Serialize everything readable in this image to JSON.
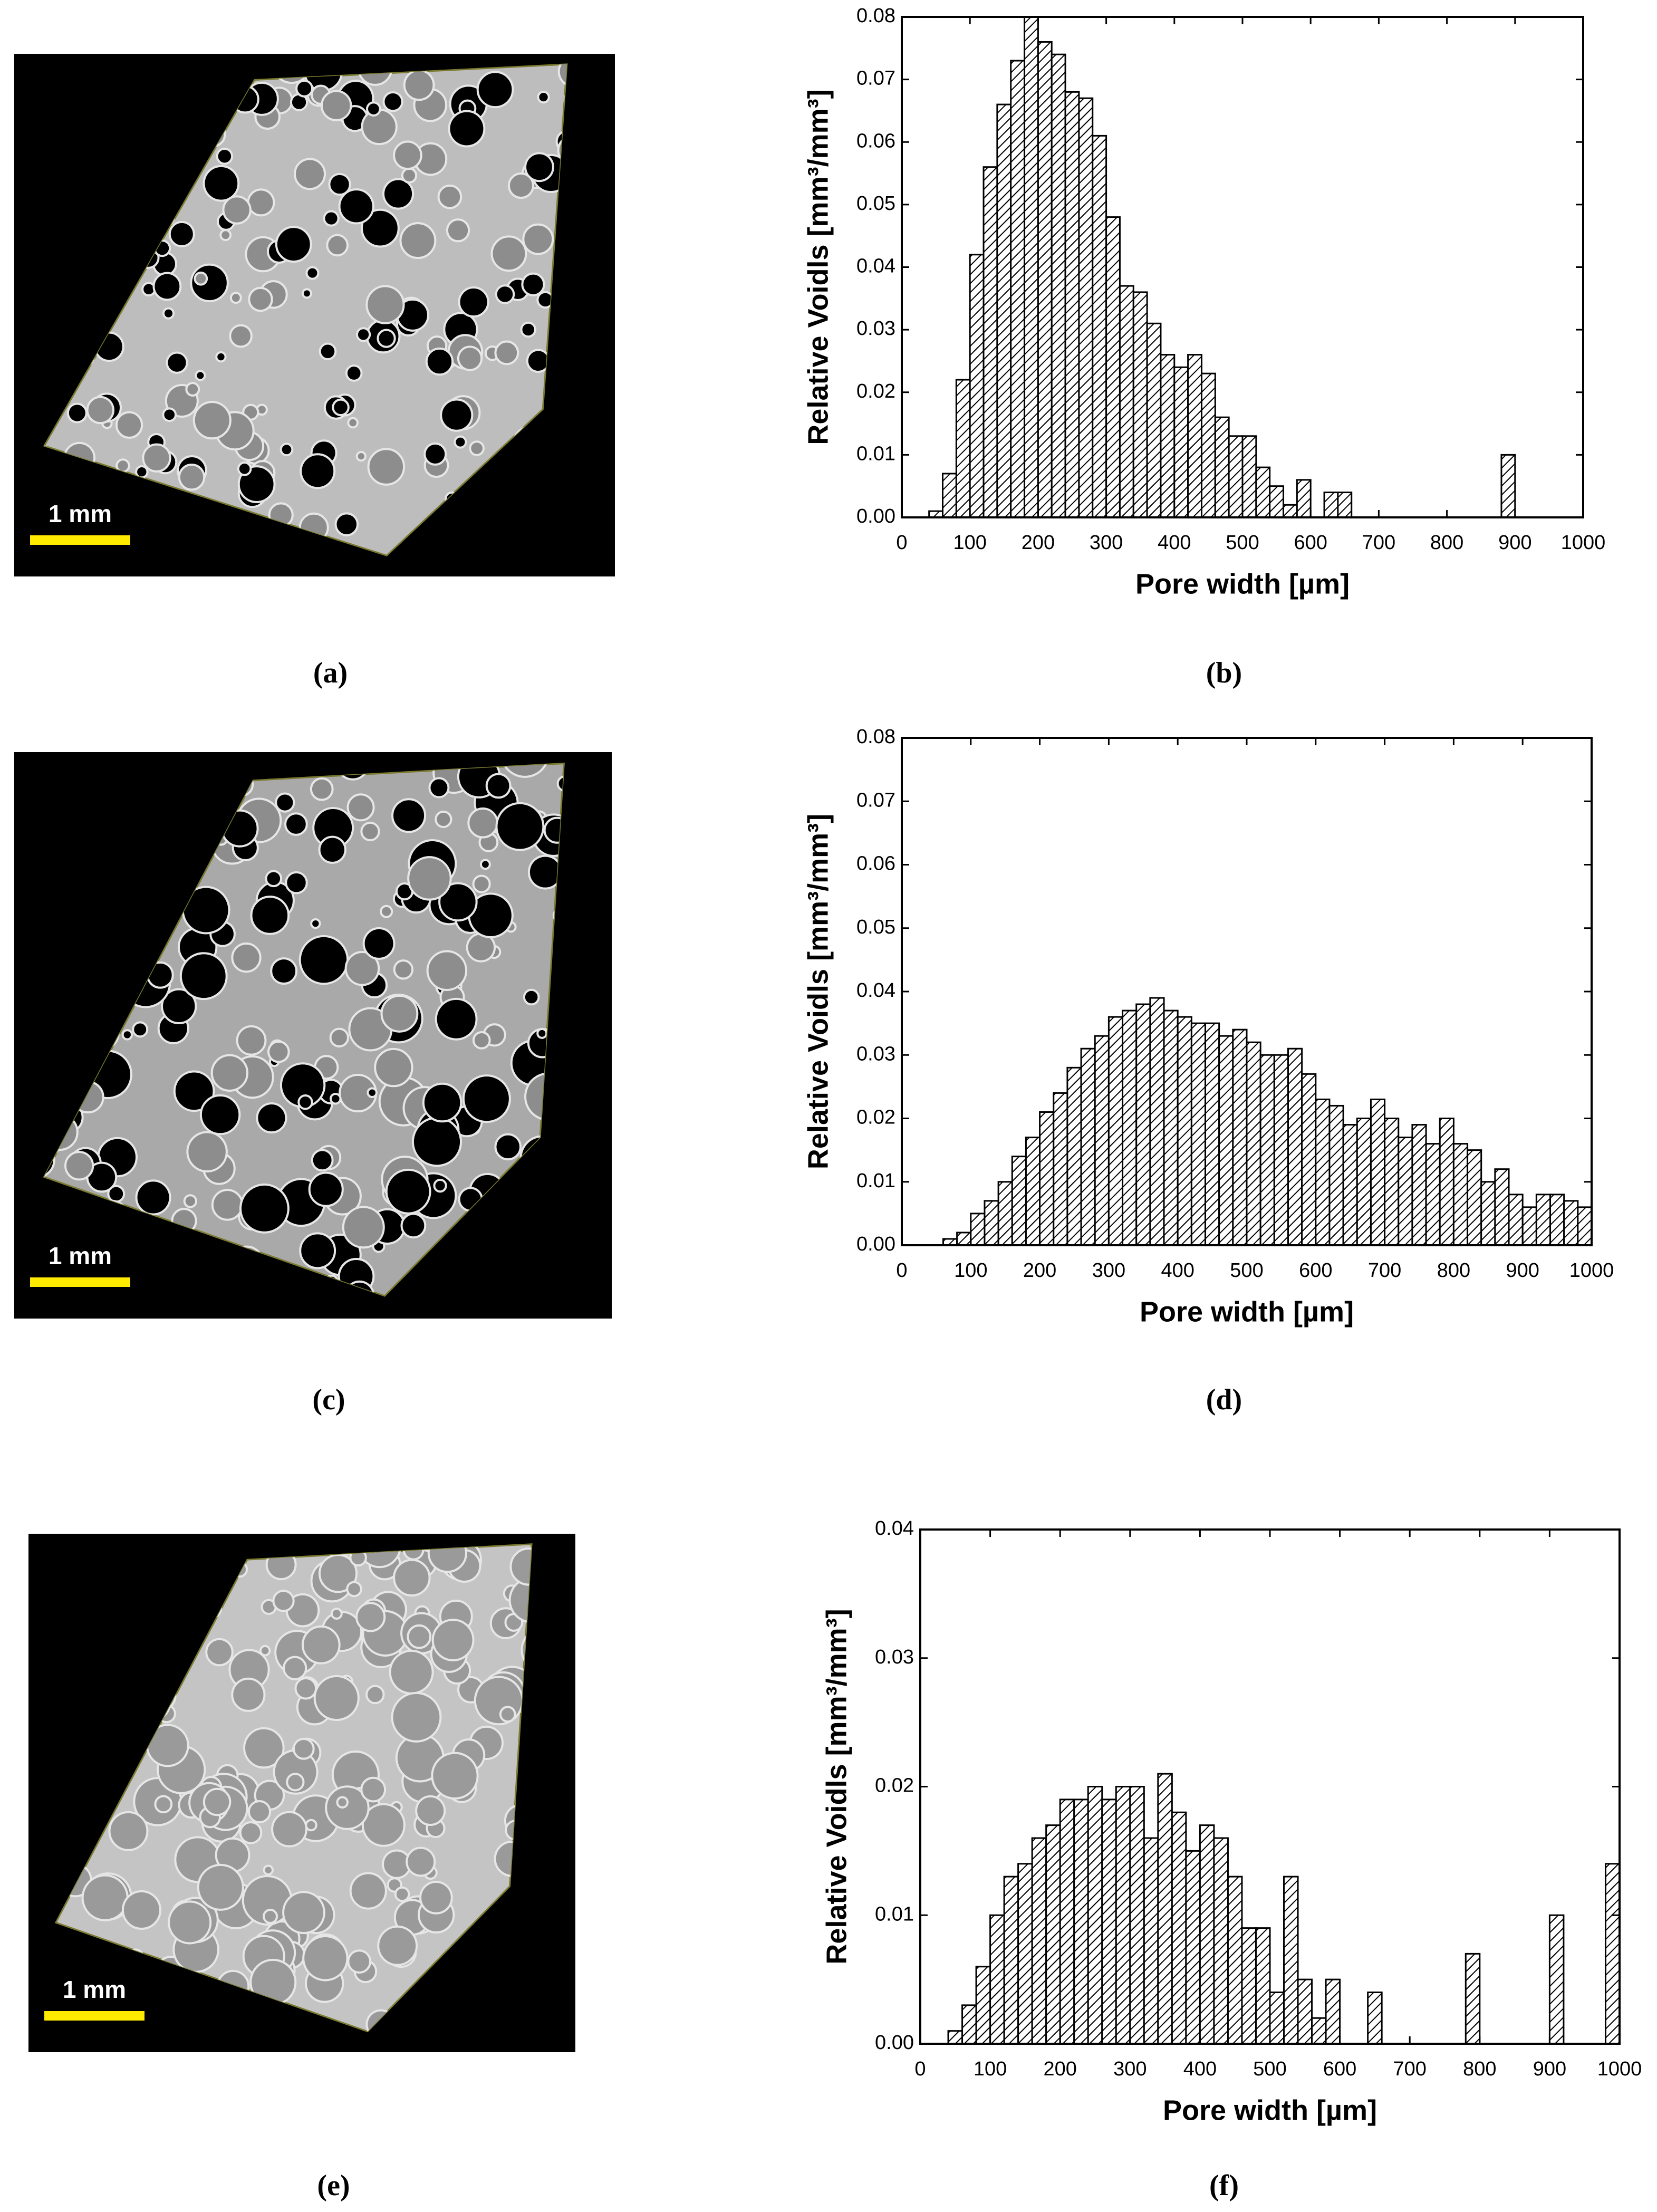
{
  "images": [
    {
      "label": "(a)",
      "scale_bar": "1 mm"
    },
    {
      "label": "(c)",
      "scale_bar": "1 mm"
    },
    {
      "label": "(e)",
      "scale_bar": "1 mm"
    }
  ],
  "chart_data": [
    {
      "type": "histogram",
      "label": "(b)",
      "x_label": "Pore width [µm]",
      "y_label": "Relative Voidls [mm³/mm³]",
      "bins": [
        0,
        20,
        40,
        60,
        80,
        100,
        120,
        140,
        160,
        180,
        200,
        220,
        240,
        260,
        280,
        300,
        320,
        340,
        360,
        380,
        400,
        420,
        440,
        460,
        480,
        500,
        520,
        540,
        560,
        580,
        600,
        620,
        640,
        660,
        680,
        700,
        720,
        740,
        760,
        780,
        800,
        820,
        840,
        860,
        880,
        900,
        920,
        940,
        960,
        980,
        1000
      ],
      "counts": [
        0,
        0,
        0.001,
        0.007,
        0.022,
        0.042,
        0.056,
        0.066,
        0.073,
        0.08,
        0.076,
        0.074,
        0.068,
        0.067,
        0.061,
        0.048,
        0.037,
        0.036,
        0.031,
        0.026,
        0.024,
        0.026,
        0.023,
        0.016,
        0.013,
        0.013,
        0.008,
        0.005,
        0.002,
        0.006,
        0,
        0.004,
        0.004,
        0,
        0,
        0,
        0,
        0,
        0,
        0,
        0,
        0,
        0,
        0,
        0.01,
        0,
        0,
        0,
        0,
        0
      ],
      "xlim": [
        0,
        1000
      ],
      "xticks": [
        0,
        100,
        200,
        300,
        400,
        500,
        600,
        700,
        800,
        900,
        1000
      ],
      "ylim": [
        0,
        0.08
      ],
      "yticks": [
        {
          "value": 0,
          "label": "0.00"
        },
        {
          "value": 0.01,
          "label": "0.01"
        },
        {
          "value": 0.02,
          "label": "0.02"
        },
        {
          "value": 0.03,
          "label": "0.03"
        },
        {
          "value": 0.04,
          "label": "0.04"
        },
        {
          "value": 0.05,
          "label": "0.05"
        },
        {
          "value": 0.06,
          "label": "0.06"
        },
        {
          "value": 0.07,
          "label": "0.07"
        },
        {
          "value": 0.08,
          "label": "0.08"
        }
      ],
      "color": "#000000"
    },
    {
      "type": "histogram",
      "label": "(d)",
      "x_label": "Pore width [µm]",
      "y_label": "Relative Voidls [mm³/mm³]",
      "bins": [
        0,
        20,
        40,
        60,
        80,
        100,
        120,
        140,
        160,
        180,
        200,
        220,
        240,
        260,
        280,
        300,
        320,
        340,
        360,
        380,
        400,
        420,
        440,
        460,
        480,
        500,
        520,
        540,
        560,
        580,
        600,
        620,
        640,
        660,
        680,
        700,
        720,
        740,
        760,
        780,
        800,
        820,
        840,
        860,
        880,
        900,
        920,
        940,
        960,
        980,
        1000
      ],
      "counts": [
        0,
        0,
        0,
        0.001,
        0.002,
        0.005,
        0.007,
        0.01,
        0.014,
        0.017,
        0.021,
        0.024,
        0.028,
        0.031,
        0.033,
        0.036,
        0.037,
        0.038,
        0.039,
        0.037,
        0.036,
        0.035,
        0.035,
        0.033,
        0.034,
        0.032,
        0.03,
        0.03,
        0.031,
        0.027,
        0.023,
        0.022,
        0.019,
        0.02,
        0.023,
        0.02,
        0.017,
        0.019,
        0.016,
        0.02,
        0.016,
        0.015,
        0.01,
        0.012,
        0.008,
        0.006,
        0.008,
        0.008,
        0.007,
        0.006
      ],
      "xlim": [
        0,
        1000
      ],
      "xticks": [
        0,
        100,
        200,
        300,
        400,
        500,
        600,
        700,
        800,
        900,
        1000
      ],
      "ylim": [
        0,
        0.08
      ],
      "yticks": [
        {
          "value": 0,
          "label": "0.00"
        },
        {
          "value": 0.01,
          "label": "0.01"
        },
        {
          "value": 0.02,
          "label": "0.02"
        },
        {
          "value": 0.03,
          "label": "0.03"
        },
        {
          "value": 0.04,
          "label": "0.04"
        },
        {
          "value": 0.05,
          "label": "0.05"
        },
        {
          "value": 0.06,
          "label": "0.06"
        },
        {
          "value": 0.07,
          "label": "0.07"
        },
        {
          "value": 0.08,
          "label": "0.08"
        }
      ],
      "color": "#000000"
    },
    {
      "type": "histogram",
      "label": "(f)",
      "x_label": "Pore width [µm]",
      "y_label": "Relative Voidls [mm³/mm³]",
      "bins": [
        0,
        20,
        40,
        60,
        80,
        100,
        120,
        140,
        160,
        180,
        200,
        220,
        240,
        260,
        280,
        300,
        320,
        340,
        360,
        380,
        400,
        420,
        440,
        460,
        480,
        500,
        520,
        540,
        560,
        580,
        600,
        620,
        640,
        660,
        680,
        700,
        720,
        740,
        760,
        780,
        800,
        820,
        840,
        860,
        880,
        900,
        920,
        940,
        960,
        980,
        1000
      ],
      "counts": [
        0,
        0,
        0.001,
        0.003,
        0.006,
        0.01,
        0.013,
        0.014,
        0.016,
        0.017,
        0.019,
        0.019,
        0.02,
        0.019,
        0.02,
        0.02,
        0.016,
        0.021,
        0.018,
        0.015,
        0.017,
        0.016,
        0.013,
        0.009,
        0.009,
        0.004,
        0.013,
        0.005,
        0.002,
        0.005,
        0,
        0,
        0.004,
        0,
        0,
        0,
        0,
        0,
        0,
        0.007,
        0,
        0,
        0,
        0,
        0,
        0.01,
        0,
        0,
        0,
        0.014
      ],
      "xlim": [
        0,
        1000
      ],
      "xticks": [
        0,
        100,
        200,
        300,
        400,
        500,
        600,
        700,
        800,
        900,
        1000
      ],
      "ylim": [
        0,
        0.04
      ],
      "yticks": [
        {
          "value": 0,
          "label": "0.00"
        },
        {
          "value": 0.01,
          "label": "0.01"
        },
        {
          "value": 0.02,
          "label": "0.02"
        },
        {
          "value": 0.03,
          "label": "0.03"
        },
        {
          "value": 0.04,
          "label": "0.04"
        }
      ],
      "color": "#000000"
    }
  ]
}
